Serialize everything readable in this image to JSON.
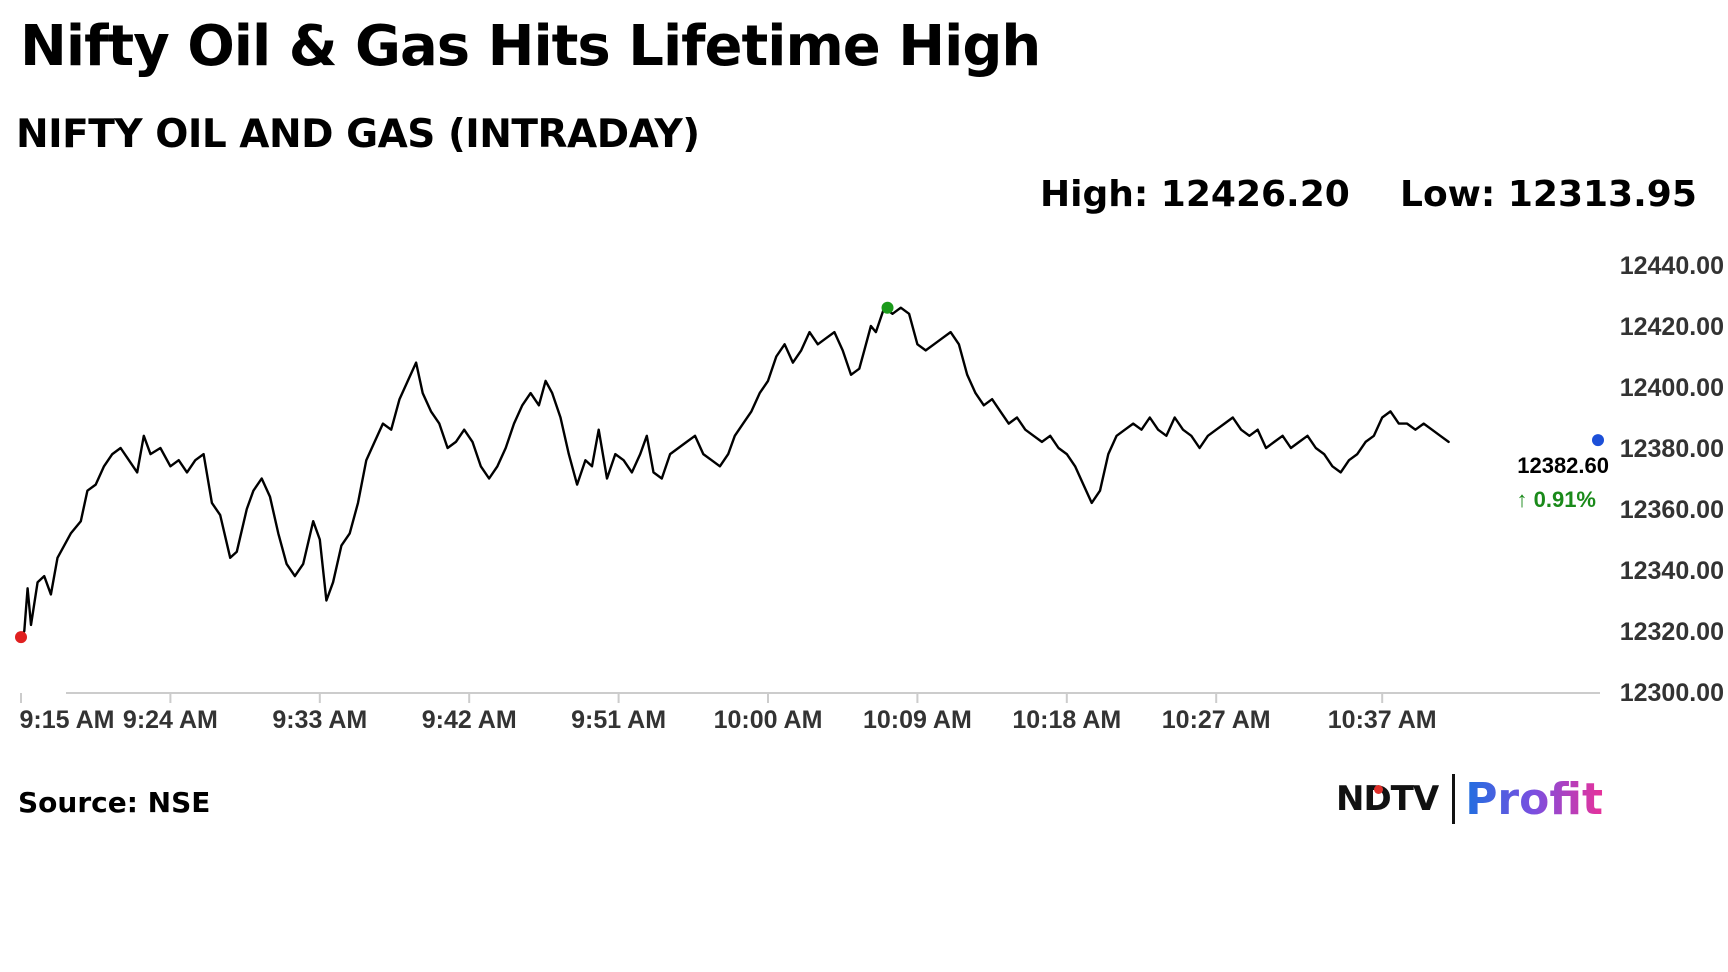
{
  "headline": "Nifty Oil & Gas Hits Lifetime High",
  "stats": {
    "high": "High: 12426.20",
    "low": "Low: 12313.95"
  },
  "source": "Source: NSE",
  "logo": {
    "ndtv": "NDTV",
    "profit": "Profit"
  },
  "chart_data": {
    "type": "line",
    "title": "NIFTY OIL AND GAS (INTRADAY)",
    "ylim": [
      12300,
      12440
    ],
    "yticks": [
      12440,
      12420,
      12400,
      12380,
      12360,
      12340,
      12320,
      12300
    ],
    "ytick_labels": [
      "12440.00",
      "12420.00",
      "12400.00",
      "12380.00",
      "12360.00",
      "12340.00",
      "12320.00",
      "12300.00"
    ],
    "xlim": [
      555,
      650
    ],
    "xticks": [
      555,
      564,
      573,
      582,
      591,
      600,
      609,
      618,
      627,
      637
    ],
    "xtick_labels": [
      "9:15 AM",
      "9:24 AM",
      "9:33 AM",
      "9:42 AM",
      "9:51 AM",
      "10:00 AM",
      "10:09 AM",
      "10:18 AM",
      "10:27 AM",
      "10:37 AM"
    ],
    "grid": false,
    "series": [
      {
        "values": [
          [
            555.0,
            12318
          ],
          [
            555.2,
            12320
          ],
          [
            555.4,
            12334
          ],
          [
            555.6,
            12322
          ],
          [
            556.0,
            12336
          ],
          [
            556.4,
            12338
          ],
          [
            556.8,
            12332
          ],
          [
            557.2,
            12344
          ],
          [
            557.6,
            12348
          ],
          [
            558.0,
            12352
          ],
          [
            558.6,
            12356
          ],
          [
            559.0,
            12366
          ],
          [
            559.5,
            12368
          ],
          [
            560.0,
            12374
          ],
          [
            560.5,
            12378
          ],
          [
            561.0,
            12380
          ],
          [
            561.5,
            12376
          ],
          [
            562.0,
            12372
          ],
          [
            562.4,
            12384
          ],
          [
            562.8,
            12378
          ],
          [
            563.4,
            12380
          ],
          [
            564.0,
            12374
          ],
          [
            564.5,
            12376
          ],
          [
            565.0,
            12372
          ],
          [
            565.5,
            12376
          ],
          [
            566.0,
            12378
          ],
          [
            566.5,
            12362
          ],
          [
            567.0,
            12358
          ],
          [
            567.6,
            12344
          ],
          [
            568.0,
            12346
          ],
          [
            568.6,
            12360
          ],
          [
            569.0,
            12366
          ],
          [
            569.5,
            12370
          ],
          [
            570.0,
            12364
          ],
          [
            570.5,
            12352
          ],
          [
            571.0,
            12342
          ],
          [
            571.5,
            12338
          ],
          [
            572.0,
            12342
          ],
          [
            572.6,
            12356
          ],
          [
            573.0,
            12350
          ],
          [
            573.4,
            12330
          ],
          [
            573.8,
            12336
          ],
          [
            574.3,
            12348
          ],
          [
            574.8,
            12352
          ],
          [
            575.3,
            12362
          ],
          [
            575.8,
            12376
          ],
          [
            576.3,
            12382
          ],
          [
            576.8,
            12388
          ],
          [
            577.3,
            12386
          ],
          [
            577.8,
            12396
          ],
          [
            578.3,
            12402
          ],
          [
            578.8,
            12408
          ],
          [
            579.2,
            12398
          ],
          [
            579.7,
            12392
          ],
          [
            580.2,
            12388
          ],
          [
            580.7,
            12380
          ],
          [
            581.2,
            12382
          ],
          [
            581.7,
            12386
          ],
          [
            582.2,
            12382
          ],
          [
            582.7,
            12374
          ],
          [
            583.2,
            12370
          ],
          [
            583.7,
            12374
          ],
          [
            584.2,
            12380
          ],
          [
            584.7,
            12388
          ],
          [
            585.2,
            12394
          ],
          [
            585.7,
            12398
          ],
          [
            586.2,
            12394
          ],
          [
            586.6,
            12402
          ],
          [
            587.0,
            12398
          ],
          [
            587.5,
            12390
          ],
          [
            588.0,
            12378
          ],
          [
            588.5,
            12368
          ],
          [
            589.0,
            12376
          ],
          [
            589.4,
            12374
          ],
          [
            589.8,
            12386
          ],
          [
            590.3,
            12370
          ],
          [
            590.8,
            12378
          ],
          [
            591.3,
            12376
          ],
          [
            591.8,
            12372
          ],
          [
            592.3,
            12378
          ],
          [
            592.7,
            12384
          ],
          [
            593.1,
            12372
          ],
          [
            593.6,
            12370
          ],
          [
            594.1,
            12378
          ],
          [
            594.6,
            12380
          ],
          [
            595.1,
            12382
          ],
          [
            595.6,
            12384
          ],
          [
            596.1,
            12378
          ],
          [
            596.6,
            12376
          ],
          [
            597.1,
            12374
          ],
          [
            597.6,
            12378
          ],
          [
            598.0,
            12384
          ],
          [
            598.5,
            12388
          ],
          [
            599.0,
            12392
          ],
          [
            599.5,
            12398
          ],
          [
            600.0,
            12402
          ],
          [
            600.5,
            12410
          ],
          [
            601.0,
            12414
          ],
          [
            601.5,
            12408
          ],
          [
            602.0,
            12412
          ],
          [
            602.5,
            12418
          ],
          [
            603.0,
            12414
          ],
          [
            603.5,
            12416
          ],
          [
            604.0,
            12418
          ],
          [
            604.5,
            12412
          ],
          [
            605.0,
            12404
          ],
          [
            605.5,
            12406
          ],
          [
            605.8,
            12412
          ],
          [
            606.2,
            12420
          ],
          [
            606.5,
            12418
          ],
          [
            607.0,
            12426
          ],
          [
            607.5,
            12424
          ],
          [
            608.0,
            12426
          ],
          [
            608.5,
            12424
          ],
          [
            609.0,
            12414
          ],
          [
            609.5,
            12412
          ],
          [
            610.0,
            12414
          ],
          [
            610.5,
            12416
          ],
          [
            611.0,
            12418
          ],
          [
            611.5,
            12414
          ],
          [
            612.0,
            12404
          ],
          [
            612.5,
            12398
          ],
          [
            613.0,
            12394
          ],
          [
            613.5,
            12396
          ],
          [
            614.0,
            12392
          ],
          [
            614.5,
            12388
          ],
          [
            615.0,
            12390
          ],
          [
            615.5,
            12386
          ],
          [
            616.0,
            12384
          ],
          [
            616.5,
            12382
          ],
          [
            617.0,
            12384
          ],
          [
            617.5,
            12380
          ],
          [
            618.0,
            12378
          ],
          [
            618.5,
            12374
          ],
          [
            619.0,
            12368
          ],
          [
            619.5,
            12362
          ],
          [
            620.0,
            12366
          ],
          [
            620.5,
            12378
          ],
          [
            621.0,
            12384
          ],
          [
            621.5,
            12386
          ],
          [
            622.0,
            12388
          ],
          [
            622.5,
            12386
          ],
          [
            623.0,
            12390
          ],
          [
            623.5,
            12386
          ],
          [
            624.0,
            12384
          ],
          [
            624.5,
            12390
          ],
          [
            625.0,
            12386
          ],
          [
            625.5,
            12384
          ],
          [
            626.0,
            12380
          ],
          [
            626.5,
            12384
          ],
          [
            627.0,
            12386
          ],
          [
            627.5,
            12388
          ],
          [
            628.0,
            12390
          ],
          [
            628.5,
            12386
          ],
          [
            629.0,
            12384
          ],
          [
            629.5,
            12386
          ],
          [
            630.0,
            12380
          ],
          [
            630.5,
            12382
          ],
          [
            631.0,
            12384
          ],
          [
            631.5,
            12380
          ],
          [
            632.0,
            12382
          ],
          [
            632.5,
            12384
          ],
          [
            633.0,
            12380
          ],
          [
            633.5,
            12378
          ],
          [
            634.0,
            12374
          ],
          [
            634.5,
            12372
          ],
          [
            635.0,
            12376
          ],
          [
            635.5,
            12378
          ],
          [
            636.0,
            12382
          ],
          [
            636.5,
            12384
          ],
          [
            637.0,
            12390
          ],
          [
            637.5,
            12392
          ],
          [
            638.0,
            12388
          ],
          [
            638.5,
            12388
          ],
          [
            639.0,
            12386
          ],
          [
            639.5,
            12388
          ],
          [
            640.0,
            12386
          ],
          [
            640.5,
            12384
          ],
          [
            641.0,
            12382
          ]
        ]
      }
    ],
    "markers": [
      {
        "x": 555.0,
        "y": 12318,
        "color": "#e02020"
      },
      {
        "x": 607.2,
        "y": 12426,
        "color": "#1a9a1a"
      },
      {
        "x": 650.0,
        "y": 12382.6,
        "color": "#1c4fd8"
      }
    ],
    "last_value_label": "12382.60",
    "change_label": "↑ 0.91%",
    "colors": {
      "line": "#000000",
      "up": "#1a8a1a",
      "axis": "#cccccc",
      "tick_text": "#333333"
    }
  }
}
